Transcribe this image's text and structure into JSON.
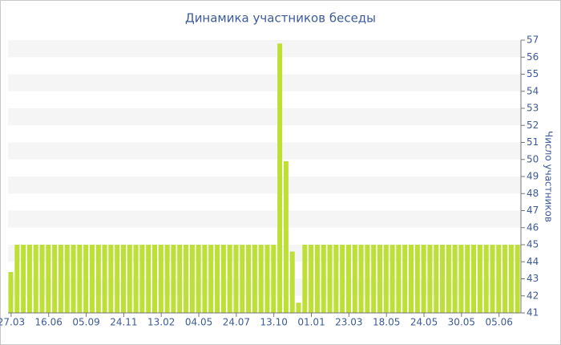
{
  "chart_data": {
    "type": "bar",
    "title": "Динамика участников беседы",
    "y_label": "Число участников",
    "categories": [
      "27.03",
      null,
      null,
      null,
      null,
      null,
      "16.06",
      null,
      null,
      null,
      null,
      null,
      "05.09",
      null,
      null,
      null,
      null,
      null,
      "24.11",
      null,
      null,
      null,
      null,
      null,
      "13.02",
      null,
      null,
      null,
      null,
      null,
      "04.05",
      null,
      null,
      null,
      null,
      null,
      "24.07",
      null,
      null,
      null,
      null,
      null,
      "13.10",
      null,
      null,
      null,
      null,
      null,
      "01.01",
      null,
      null,
      null,
      null,
      null,
      "23.03",
      null,
      null,
      null,
      null,
      null,
      "18.05",
      null,
      null,
      null,
      null,
      null,
      "24.05",
      null,
      null,
      null,
      null,
      null,
      "30.05",
      null,
      null,
      null,
      null,
      null,
      "05.06",
      null,
      null,
      null
    ],
    "values": [
      43.4,
      45,
      45,
      45,
      45,
      45,
      45,
      45,
      45,
      45,
      45,
      45,
      45,
      45,
      45,
      45,
      45,
      45,
      45,
      45,
      45,
      45,
      45,
      45,
      45,
      45,
      45,
      45,
      45,
      45,
      45,
      45,
      45,
      45,
      45,
      45,
      45,
      45,
      45,
      45,
      45,
      45,
      45,
      56.8,
      49.9,
      44.6,
      41.6,
      45,
      45,
      45,
      45,
      45,
      45,
      45,
      45,
      45,
      45,
      45,
      45,
      45,
      45,
      45,
      45,
      45,
      45,
      45,
      45,
      45,
      45,
      45,
      45,
      45,
      45,
      45,
      45,
      45,
      45,
      45,
      45,
      45,
      45,
      45
    ],
    "color": "#bedf35",
    "ylim": [
      41,
      57
    ],
    "yticks": [
      41,
      42,
      43,
      44,
      45,
      46,
      47,
      48,
      49,
      50,
      51,
      52,
      53,
      54,
      55,
      56,
      57
    ],
    "grid": true
  }
}
